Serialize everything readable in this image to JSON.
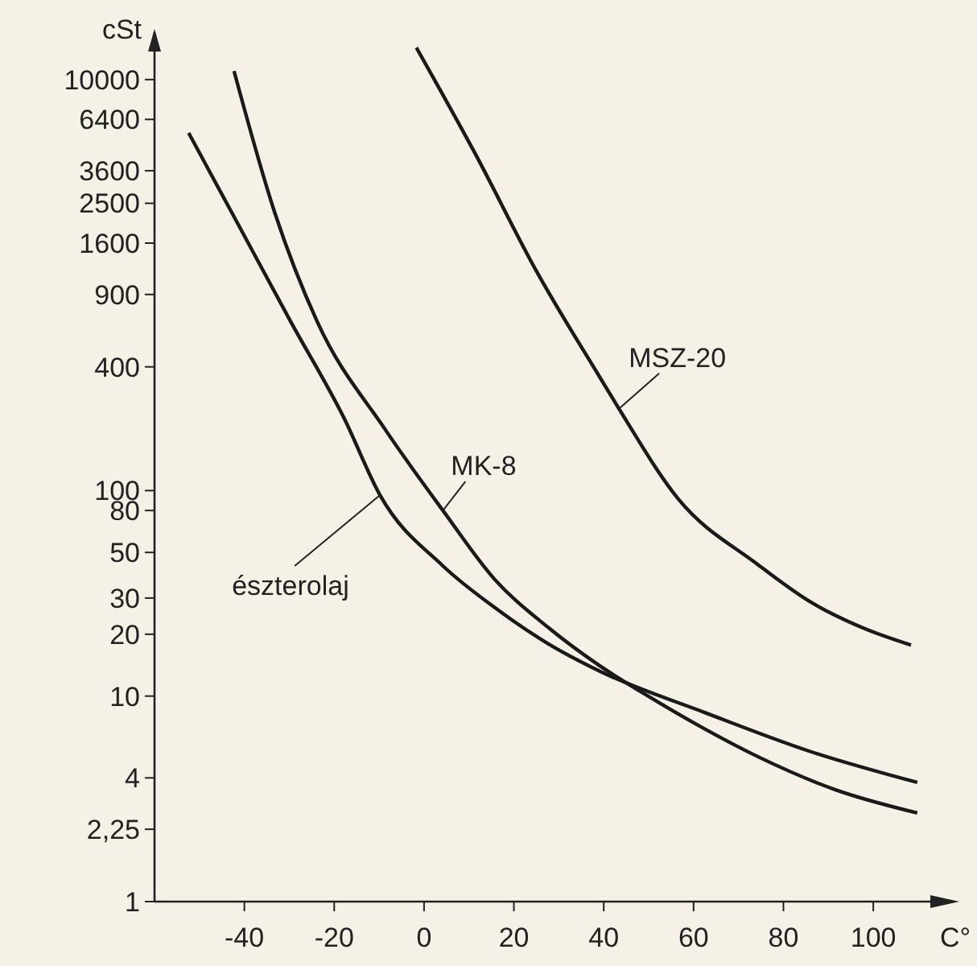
{
  "chart_data": {
    "type": "line",
    "xlabel": "C°",
    "ylabel": "cSt",
    "log": "y",
    "grid": false,
    "marker": "none",
    "line_style": "solid",
    "xlim": [
      -60,
      117
    ],
    "xticks": [
      -40,
      -20,
      0,
      20,
      40,
      60,
      80,
      100
    ],
    "ylim": [
      1,
      17000
    ],
    "yticks": [
      1,
      {
        "value": 2.25,
        "label": "2,25"
      },
      4,
      10,
      20,
      30,
      50,
      80,
      100,
      400,
      900,
      1600,
      2500,
      3600,
      6400,
      10000
    ],
    "series": [
      {
        "color": "#1a1a1a",
        "x": [
          -1.7,
          11.2,
          25.2,
          39.2,
          43.4,
          56.6,
          74.1,
          85.7,
          97.6,
          108.4
        ],
        "values": [
          14300,
          4440,
          1150,
          354,
          250,
          91,
          44,
          29,
          21.5,
          17.7
        ]
      },
      {
        "color": "#1a1a1a",
        "x": [
          -42.3,
          -33.2,
          -23.8,
          -8.7,
          4.2,
          15.7,
          27.6,
          39.2,
          48.6,
          62.6,
          74.1,
          91.6,
          109.8
        ],
        "values": [
          11000,
          2240,
          665,
          199,
          80,
          37,
          21.6,
          14,
          10.4,
          6.9,
          5.1,
          3.5,
          2.7
        ]
      },
      {
        "color": "#1a1a1a",
        "x": [
          -52.4,
          -41.3,
          -29.7,
          -17.8,
          -9.8,
          4.2,
          15.7,
          27.6,
          39.2,
          62.6,
          85.7,
          109.8
        ],
        "values": [
          5500,
          1960,
          665,
          225,
          95,
          43,
          27,
          18,
          13.2,
          8.3,
          5.4,
          3.8
        ]
      }
    ],
    "annotations": [
      {
        "text": "MSZ-20",
        "x": 43.4,
        "y": 250
      },
      {
        "text": "MK-8",
        "x": 4.2,
        "y": 80
      },
      {
        "text": "észterolaj",
        "x": -9.8,
        "y": 95
      }
    ]
  }
}
